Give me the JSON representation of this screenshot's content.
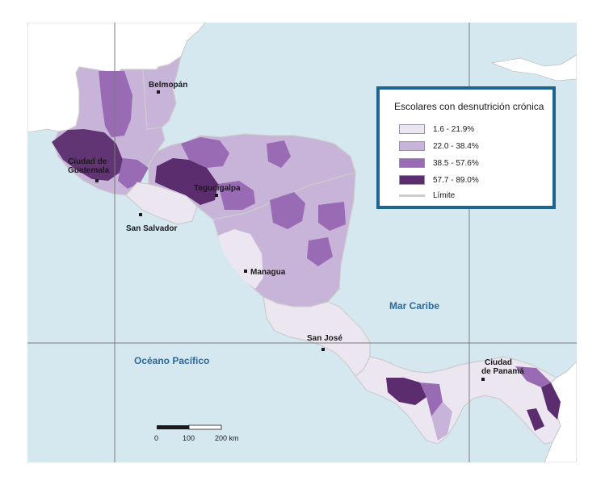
{
  "legend": {
    "title": "Escolares con desnutrición crónica",
    "items": [
      {
        "label": "1.6 - 21.9%",
        "color": "#ece6f0"
      },
      {
        "label": "22.0 - 38.4%",
        "color": "#c8b4d8"
      },
      {
        "label": "38.5 - 57.6%",
        "color": "#9a6bb5"
      },
      {
        "label": "57.7 - 89.0%",
        "color": "#5c2d6e"
      }
    ],
    "limit_label": "Límite",
    "limit_color": "#cccccc"
  },
  "cities": {
    "belmopan": "Belmopán",
    "guatemala_1": "Ciudad de",
    "guatemala_2": "Guatemala",
    "tegucigalpa": "Tegucigalpa",
    "san_salvador": "San Salvador",
    "managua": "Managua",
    "san_jose": "San José",
    "panama_1": "Ciudad",
    "panama_2": "de Panamá"
  },
  "seas": {
    "caribbean": "Mar Caribe",
    "pacific": "Océano Pacífico"
  },
  "scale": {
    "ticks": [
      "0",
      "100",
      "200 km"
    ]
  },
  "colors": {
    "sea": "#d5e8f0",
    "land_outside": "#ffffff",
    "graticule": "#7a7a7a"
  }
}
